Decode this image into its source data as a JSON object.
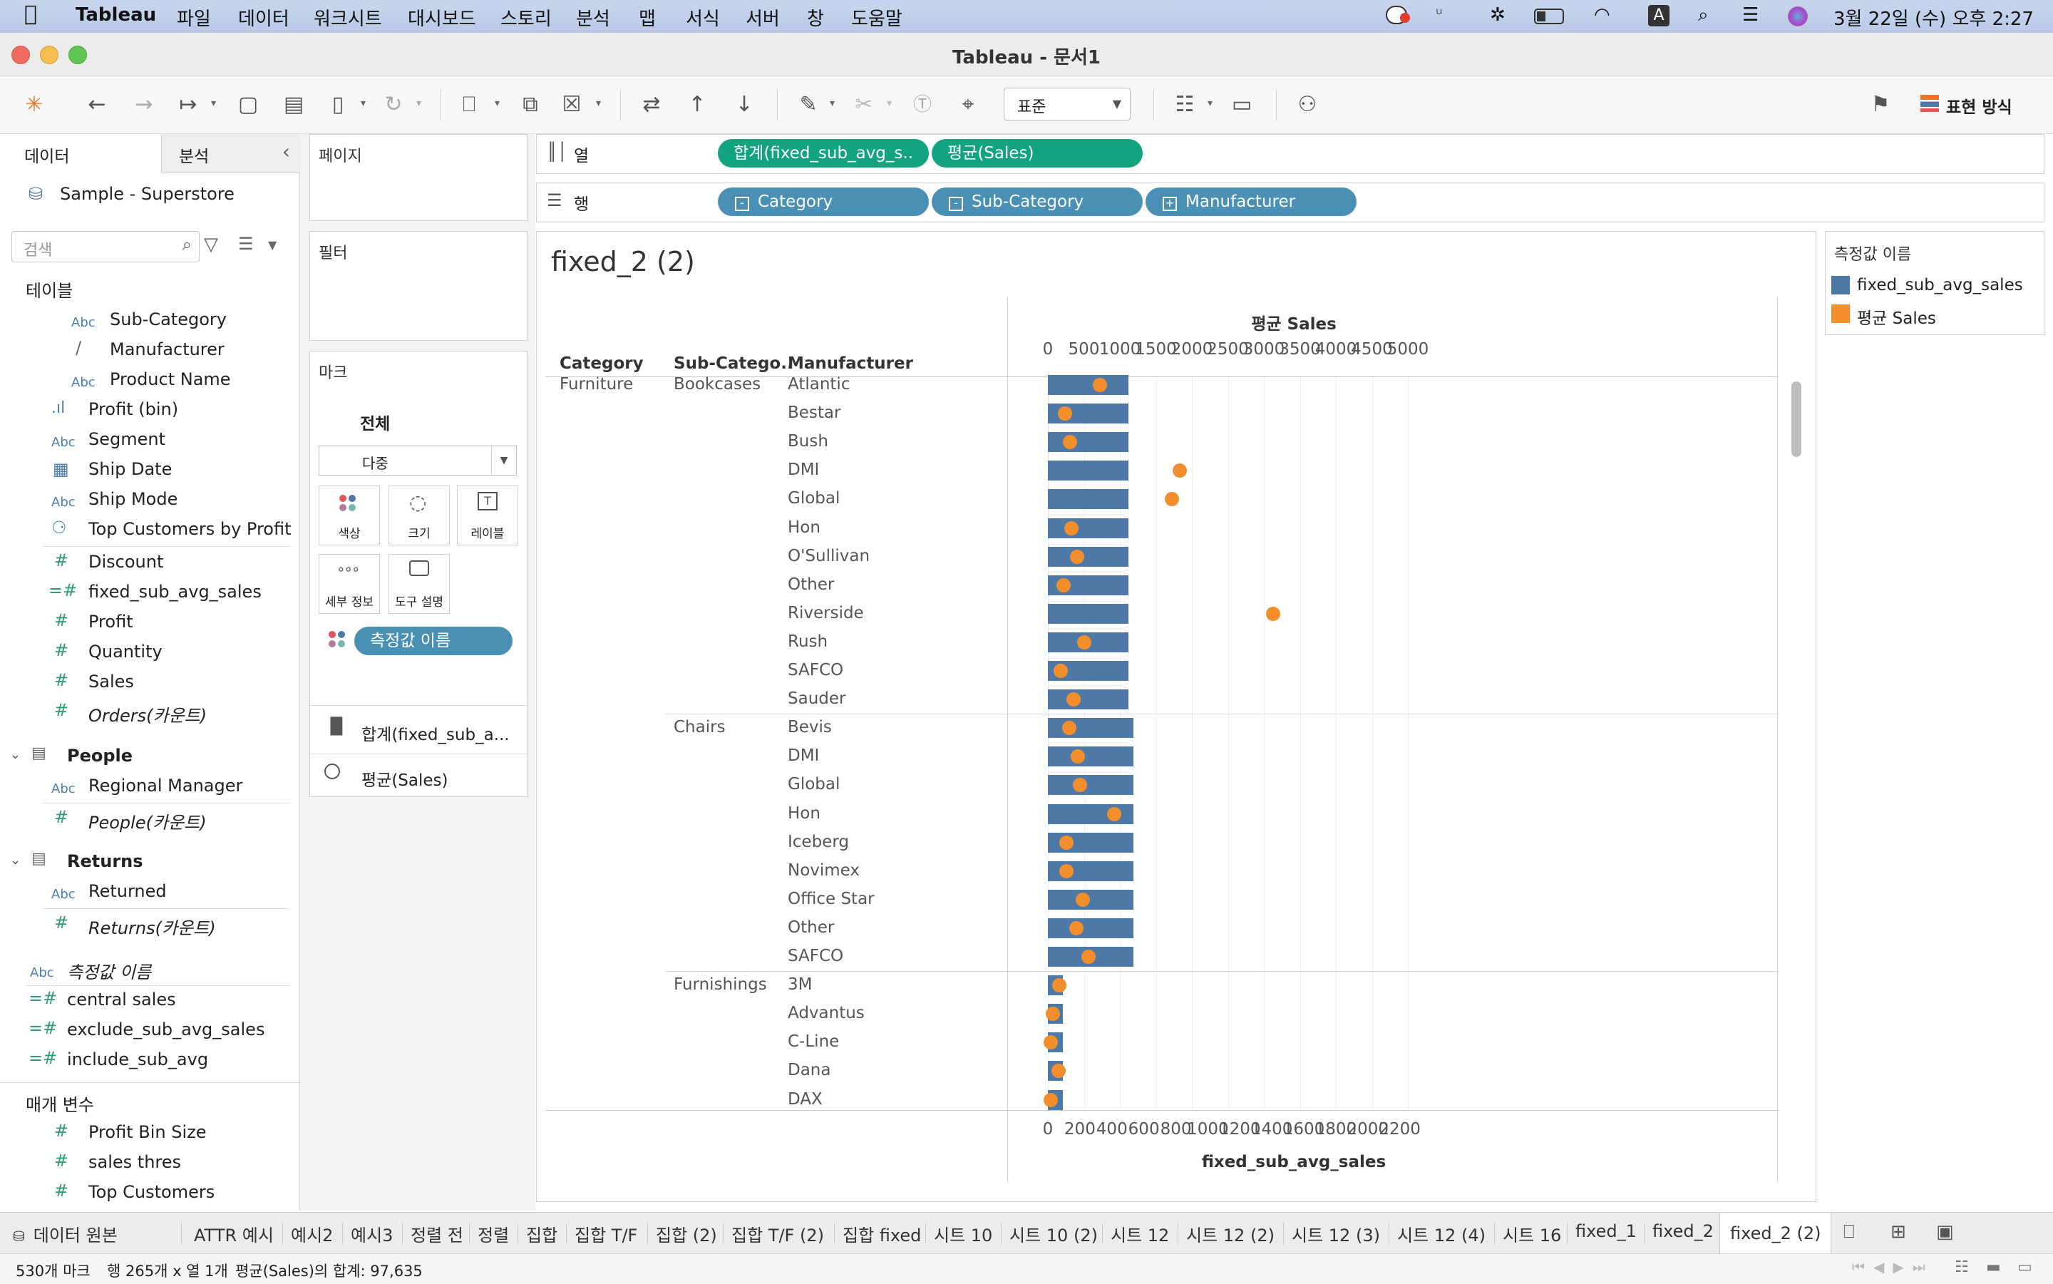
{
  "menubar": {
    "app": "Tableau",
    "items": [
      "파일",
      "데이터",
      "워크시트",
      "대시보드",
      "스토리",
      "분석",
      "맵",
      "서식",
      "서버",
      "창",
      "도움말"
    ],
    "clock": "3월 22일 (수) 오후  2:27",
    "input_indicator": "A"
  },
  "window": {
    "title": "Tableau - 문서1"
  },
  "toolbar": {
    "fit_select": "표준",
    "show_me": "표현 방식"
  },
  "data_pane": {
    "tab_data": "데이터",
    "tab_analysis": "분석",
    "datasource": "Sample - Superstore",
    "search_placeholder": "검색",
    "tables_label": "테이블",
    "fields": [
      {
        "icon": "Abc",
        "name": "Sub-Category"
      },
      {
        "icon": "clip",
        "name": "Manufacturer"
      },
      {
        "icon": "Abc",
        "name": "Product Name"
      },
      {
        "icon": "bin",
        "name": "Profit (bin)"
      },
      {
        "icon": "Abc",
        "name": "Segment"
      },
      {
        "icon": "cal",
        "name": "Ship Date"
      },
      {
        "icon": "Abc",
        "name": "Ship Mode"
      },
      {
        "icon": "set",
        "name": "Top Customers by Profit"
      },
      {
        "icon": "#",
        "name": "Discount"
      },
      {
        "icon": "=#",
        "name": "fixed_sub_avg_sales"
      },
      {
        "icon": "#",
        "name": "Profit"
      },
      {
        "icon": "#",
        "name": "Quantity"
      },
      {
        "icon": "#",
        "name": "Sales"
      },
      {
        "icon": "#",
        "name": "Orders(카운트)"
      }
    ],
    "people_table": "People",
    "people_fields": [
      {
        "icon": "Abc",
        "name": "Regional Manager"
      },
      {
        "icon": "#",
        "name": "People(카운트)"
      }
    ],
    "returns_table": "Returns",
    "returns_fields": [
      {
        "icon": "Abc",
        "name": "Returned"
      },
      {
        "icon": "#",
        "name": "Returns(카운트)"
      }
    ],
    "measure_names": "측정값 이름",
    "extra_fields": [
      {
        "icon": "=#",
        "name": "central sales"
      },
      {
        "icon": "=#",
        "name": "exclude_sub_avg_sales"
      },
      {
        "icon": "=#",
        "name": "include_sub_avg"
      }
    ],
    "params_label": "매개 변수",
    "params": [
      {
        "icon": "#",
        "name": "Profit Bin Size"
      },
      {
        "icon": "#",
        "name": "sales thres"
      },
      {
        "icon": "#",
        "name": "Top Customers"
      }
    ]
  },
  "shelves": {
    "pages": "페이지",
    "filters": "필터",
    "marks": "마크",
    "marks_all": "전체",
    "mark_type": "다중",
    "mark_buttons": [
      "색상",
      "크기",
      "레이블",
      "세부 정보",
      "도구 설명"
    ],
    "measure_pill": "측정값 이름",
    "mark_cards": [
      "합계(fixed_sub_a...",
      "평균(Sales)"
    ],
    "columns_label": "열",
    "rows_label": "행",
    "columns": [
      "합계(fixed_sub_avg_s..",
      "평균(Sales)"
    ],
    "rows": [
      "Category",
      "Sub-Category",
      "Manufacturer"
    ]
  },
  "viz": {
    "title": "fixed_2 (2)",
    "col_headers": [
      "Category",
      "Sub-Catego..",
      "Manufacturer"
    ],
    "top_axis_title": "평균 Sales",
    "top_ticks": [
      "0",
      "500",
      "1000",
      "1500",
      "2000",
      "2500",
      "3000",
      "3500",
      "4000",
      "4500",
      "5000"
    ],
    "bottom_axis_title": "fixed_sub_avg_sales",
    "bottom_ticks": [
      "0",
      "200",
      "400",
      "600",
      "800",
      "1000",
      "1200",
      "1400",
      "1600",
      "1800",
      "2000",
      "2200"
    ]
  },
  "chart_data": {
    "type": "bar",
    "title": "fixed_2 (2)",
    "xlabel": "fixed_sub_avg_sales",
    "x2label": "평균 Sales",
    "xlim": [
      0,
      2250
    ],
    "x2lim": [
      0,
      5150
    ],
    "legend_position": "right",
    "grid": true,
    "groups": [
      {
        "category": "Furniture",
        "subcategory": "Bookcases",
        "fixed_sub_avg_sales": 504,
        "rows": [
          {
            "manufacturer": "Atlantic",
            "avg_sales": 720
          },
          {
            "manufacturer": "Bestar",
            "avg_sales": 240
          },
          {
            "manufacturer": "Bush",
            "avg_sales": 305
          },
          {
            "manufacturer": "DMI",
            "avg_sales": 1830
          },
          {
            "manufacturer": "Global",
            "avg_sales": 1720
          },
          {
            "manufacturer": "Hon",
            "avg_sales": 325
          },
          {
            "manufacturer": "O'Sullivan",
            "avg_sales": 405
          },
          {
            "manufacturer": "Other",
            "avg_sales": 215
          },
          {
            "manufacturer": "Riverside",
            "avg_sales": 3130
          },
          {
            "manufacturer": "Rush",
            "avg_sales": 500
          },
          {
            "manufacturer": "SAFCO",
            "avg_sales": 180
          },
          {
            "manufacturer": "Sauder",
            "avg_sales": 355
          }
        ]
      },
      {
        "category": "",
        "subcategory": "Chairs",
        "fixed_sub_avg_sales": 533,
        "rows": [
          {
            "manufacturer": "Bevis",
            "avg_sales": 300
          },
          {
            "manufacturer": "DMI",
            "avg_sales": 415
          },
          {
            "manufacturer": "Global",
            "avg_sales": 445
          },
          {
            "manufacturer": "Hon",
            "avg_sales": 925
          },
          {
            "manufacturer": "Iceberg",
            "avg_sales": 255
          },
          {
            "manufacturer": "Novimex",
            "avg_sales": 255
          },
          {
            "manufacturer": "Office Star",
            "avg_sales": 485
          },
          {
            "manufacturer": "Other",
            "avg_sales": 395
          },
          {
            "manufacturer": "SAFCO",
            "avg_sales": 565
          }
        ]
      },
      {
        "category": "",
        "subcategory": "Furnishings",
        "fixed_sub_avg_sales": 92,
        "rows": [
          {
            "manufacturer": "3M",
            "avg_sales": 155
          },
          {
            "manufacturer": "Advantus",
            "avg_sales": 70
          },
          {
            "manufacturer": "C-Line",
            "avg_sales": 40
          },
          {
            "manufacturer": "Dana",
            "avg_sales": 150
          },
          {
            "manufacturer": "DAX",
            "avg_sales": 35
          }
        ]
      }
    ],
    "series": [
      {
        "name": "fixed_sub_avg_sales",
        "color": "#4e79a7",
        "mark": "bar"
      },
      {
        "name": "평균 Sales",
        "color": "#f28e2b",
        "mark": "circle"
      }
    ]
  },
  "legend": {
    "title": "측정값 이름",
    "items": [
      "fixed_sub_avg_sales",
      "평균 Sales"
    ]
  },
  "tabs": {
    "datasource": "데이터 원본",
    "sheets": [
      "ATTR 예시",
      "예시2",
      "예시3",
      "정렬 전",
      "정렬",
      "집합",
      "집합 T/F",
      "집합 (2)",
      "집합 T/F (2)",
      "집합 fixed",
      "시트 10",
      "시트 10 (2)",
      "시트 12",
      "시트 12 (2)",
      "시트 12 (3)",
      "시트 12 (4)",
      "시트 16",
      "fixed_1",
      "fixed_2",
      "fixed_2 (2)"
    ]
  },
  "status": {
    "marks": "530개 마크",
    "rows_cols": "행 265개 x 열 1개",
    "sum": "평균(Sales)의 합계: 97,635"
  }
}
